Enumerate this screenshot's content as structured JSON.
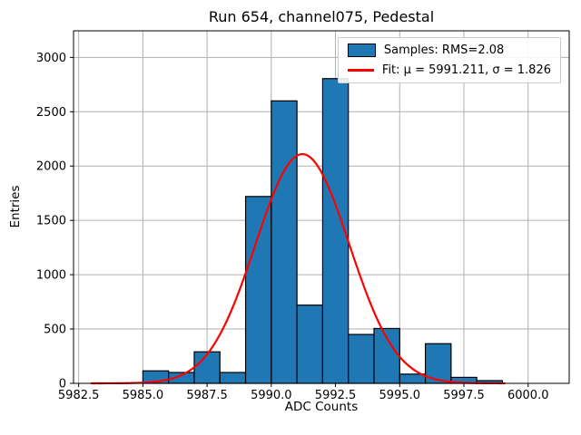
{
  "window_title": "Run 654, channel075, Pedestal",
  "chart_data": {
    "type": "bar",
    "subtype": "histogram-with-gaussian-fit",
    "title": "Run 654, channel075, Pedestal",
    "xlabel": "ADC Counts",
    "ylabel": "Entries",
    "xlim": [
      5982.3,
      6001.6
    ],
    "ylim": [
      0,
      3245
    ],
    "grid": true,
    "x_ticks": [
      5982.5,
      5985.0,
      5987.5,
      5990.0,
      5992.5,
      5995.0,
      5997.5,
      6000.0
    ],
    "x_tick_labels": [
      "5982.5",
      "5985.0",
      "5987.5",
      "5990.0",
      "5992.5",
      "5995.0",
      "5997.5",
      "6000.0"
    ],
    "y_ticks": [
      0,
      500,
      1000,
      1500,
      2000,
      2500,
      3000
    ],
    "y_tick_labels": [
      "0",
      "500",
      "1000",
      "1500",
      "2000",
      "2500",
      "3000"
    ],
    "bin_width": 1,
    "bin_left_edges": [
      5985,
      5986,
      5987,
      5988,
      5989,
      5990,
      5991,
      5992,
      5993,
      5994,
      5995,
      5996,
      5997,
      5998
    ],
    "counts": [
      115,
      100,
      290,
      100,
      1720,
      2600,
      720,
      2805,
      450,
      505,
      85,
      365,
      55,
      25
    ],
    "fit": {
      "mu": 5991.211,
      "sigma": 1.826,
      "amplitude": 2110,
      "x_start": 5983.0,
      "x_end": 5999.1
    },
    "legend": {
      "position": "upper right",
      "entries": [
        {
          "label": "Samples: RMS=2.08",
          "swatch": "patch",
          "color": "#1f77b4"
        },
        {
          "label": "Fit: μ = 5991.211, σ = 1.826",
          "swatch": "line",
          "color": "#ff0000"
        }
      ]
    },
    "colors": {
      "bar_fill": "#1f77b4",
      "bar_edge": "#000000",
      "fit_line": "#ff0000",
      "grid": "#b0b0b0",
      "frame": "#000000",
      "background": "#ffffff"
    }
  }
}
